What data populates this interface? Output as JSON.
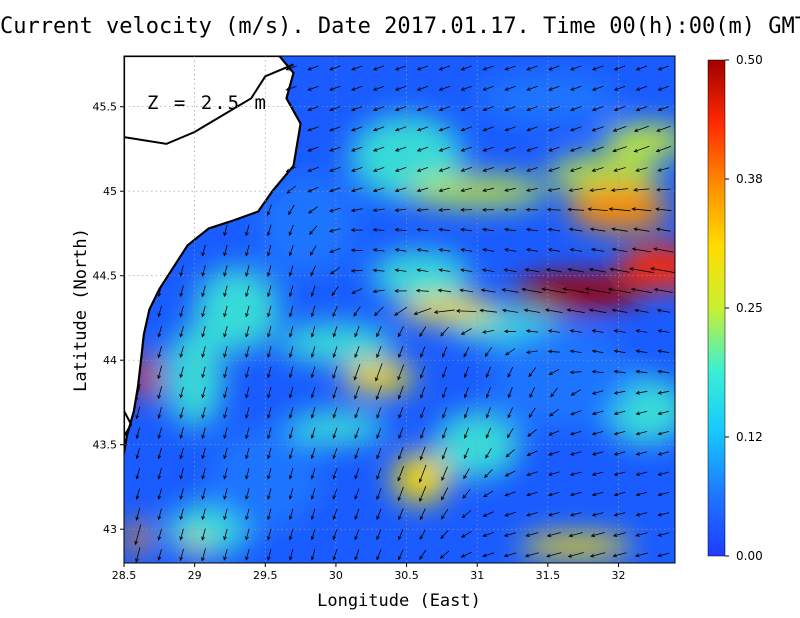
{
  "title": "Current velocity (m/s). Date 2017.01.17. Time 00(h):00(m) GMT",
  "depth_label": "Z = 2.5 m",
  "colors": {
    "land": "#ffffff",
    "coast": "#000000",
    "grid": "#9a9a9a",
    "arrow": "#000000"
  },
  "chart_data": {
    "type": "heatmap",
    "title": "Current velocity (m/s). Date 2017.01.17. Time 00(h):00(m) GMT",
    "xlabel": "Longitude (East)",
    "ylabel": "Latitude (North)",
    "xlim": [
      28.5,
      32.4
    ],
    "ylim": [
      42.8,
      45.8
    ],
    "x_ticks": [
      {
        "v": 28.5,
        "label": "28.5"
      },
      {
        "v": 29,
        "label": "29"
      },
      {
        "v": 29.5,
        "label": "29.5"
      },
      {
        "v": 30,
        "label": "30"
      },
      {
        "v": 30.5,
        "label": "30.5"
      },
      {
        "v": 31,
        "label": "31"
      },
      {
        "v": 31.5,
        "label": "31.5"
      },
      {
        "v": 32,
        "label": "32"
      }
    ],
    "y_ticks": [
      {
        "v": 43,
        "label": "43"
      },
      {
        "v": 43.5,
        "label": "43.5"
      },
      {
        "v": 44,
        "label": "44"
      },
      {
        "v": 44.5,
        "label": "44.5"
      },
      {
        "v": 45,
        "label": "45"
      },
      {
        "v": 45.5,
        "label": "45.5"
      }
    ],
    "grid": true,
    "colorbar": {
      "min": 0.0,
      "max": 0.5,
      "ticks": [
        {
          "v": 0.0,
          "label": "0.00"
        },
        {
          "v": 0.12,
          "label": "0.12"
        },
        {
          "v": 0.25,
          "label": "0.25"
        },
        {
          "v": 0.38,
          "label": "0.38"
        },
        {
          "v": 0.5,
          "label": "0.50"
        }
      ],
      "colors": [
        "#1e3cff",
        "#1e78ff",
        "#16c8ff",
        "#3cf0d2",
        "#c8f032",
        "#ffdc00",
        "#ff8c00",
        "#ff2800",
        "#a00000"
      ]
    },
    "high_speed_zones": [
      {
        "lon": 31.7,
        "lat": 44.4,
        "speed": 0.48,
        "rlon": 0.45,
        "rlat": 0.12
      },
      {
        "lon": 32.3,
        "lat": 44.55,
        "speed": 0.46,
        "rlon": 0.3,
        "rlat": 0.14
      },
      {
        "lon": 32.0,
        "lat": 44.9,
        "speed": 0.36,
        "rlon": 0.35,
        "rlat": 0.14
      },
      {
        "lon": 30.8,
        "lat": 44.3,
        "speed": 0.34,
        "rlon": 0.35,
        "rlat": 0.08
      },
      {
        "lon": 28.65,
        "lat": 43.9,
        "speed": 0.42,
        "rlon": 0.08,
        "rlat": 0.15
      },
      {
        "lon": 28.6,
        "lat": 42.95,
        "speed": 0.36,
        "rlon": 0.08,
        "rlat": 0.1
      },
      {
        "lon": 29.0,
        "lat": 42.9,
        "speed": 0.33,
        "rlon": 0.08,
        "rlat": 0.05
      },
      {
        "lon": 30.3,
        "lat": 43.9,
        "speed": 0.32,
        "rlon": 0.25,
        "rlat": 0.1
      },
      {
        "lon": 30.6,
        "lat": 43.3,
        "speed": 0.3,
        "rlon": 0.2,
        "rlat": 0.15
      },
      {
        "lon": 31.7,
        "lat": 42.9,
        "speed": 0.3,
        "rlon": 0.4,
        "rlat": 0.07
      },
      {
        "lon": 32.2,
        "lat": 45.3,
        "speed": 0.27,
        "rlon": 0.3,
        "rlat": 0.1
      }
    ],
    "low_speed_zones": [
      {
        "lon": 29.8,
        "lat": 44.8,
        "speed": 0.05,
        "rlon": 0.35,
        "rlat": 0.3
      },
      {
        "lon": 29.5,
        "lat": 43.3,
        "speed": 0.05,
        "rlon": 0.4,
        "rlat": 0.3
      },
      {
        "lon": 31.6,
        "lat": 43.9,
        "speed": 0.06,
        "rlon": 0.5,
        "rlat": 0.3
      },
      {
        "lon": 31.5,
        "lat": 45.55,
        "speed": 0.08,
        "rlon": 0.5,
        "rlat": 0.15
      }
    ],
    "flow_regions": [
      {
        "lon": 31.6,
        "lat": 44.6,
        "dir_deg": 170,
        "rlon": 0.8,
        "rlat": 0.3
      },
      {
        "lon": 31.2,
        "lat": 45.3,
        "dir_deg": 200,
        "rlon": 0.8,
        "rlat": 0.3
      },
      {
        "lon": 30.5,
        "lat": 43.6,
        "dir_deg": 250,
        "rlon": 0.5,
        "rlat": 0.4
      },
      {
        "lon": 29.2,
        "lat": 43.8,
        "dir_deg": 255,
        "rlon": 0.5,
        "rlat": 0.6
      },
      {
        "lon": 31.8,
        "lat": 43.1,
        "dir_deg": 195,
        "rlon": 0.6,
        "rlat": 0.3
      }
    ]
  }
}
